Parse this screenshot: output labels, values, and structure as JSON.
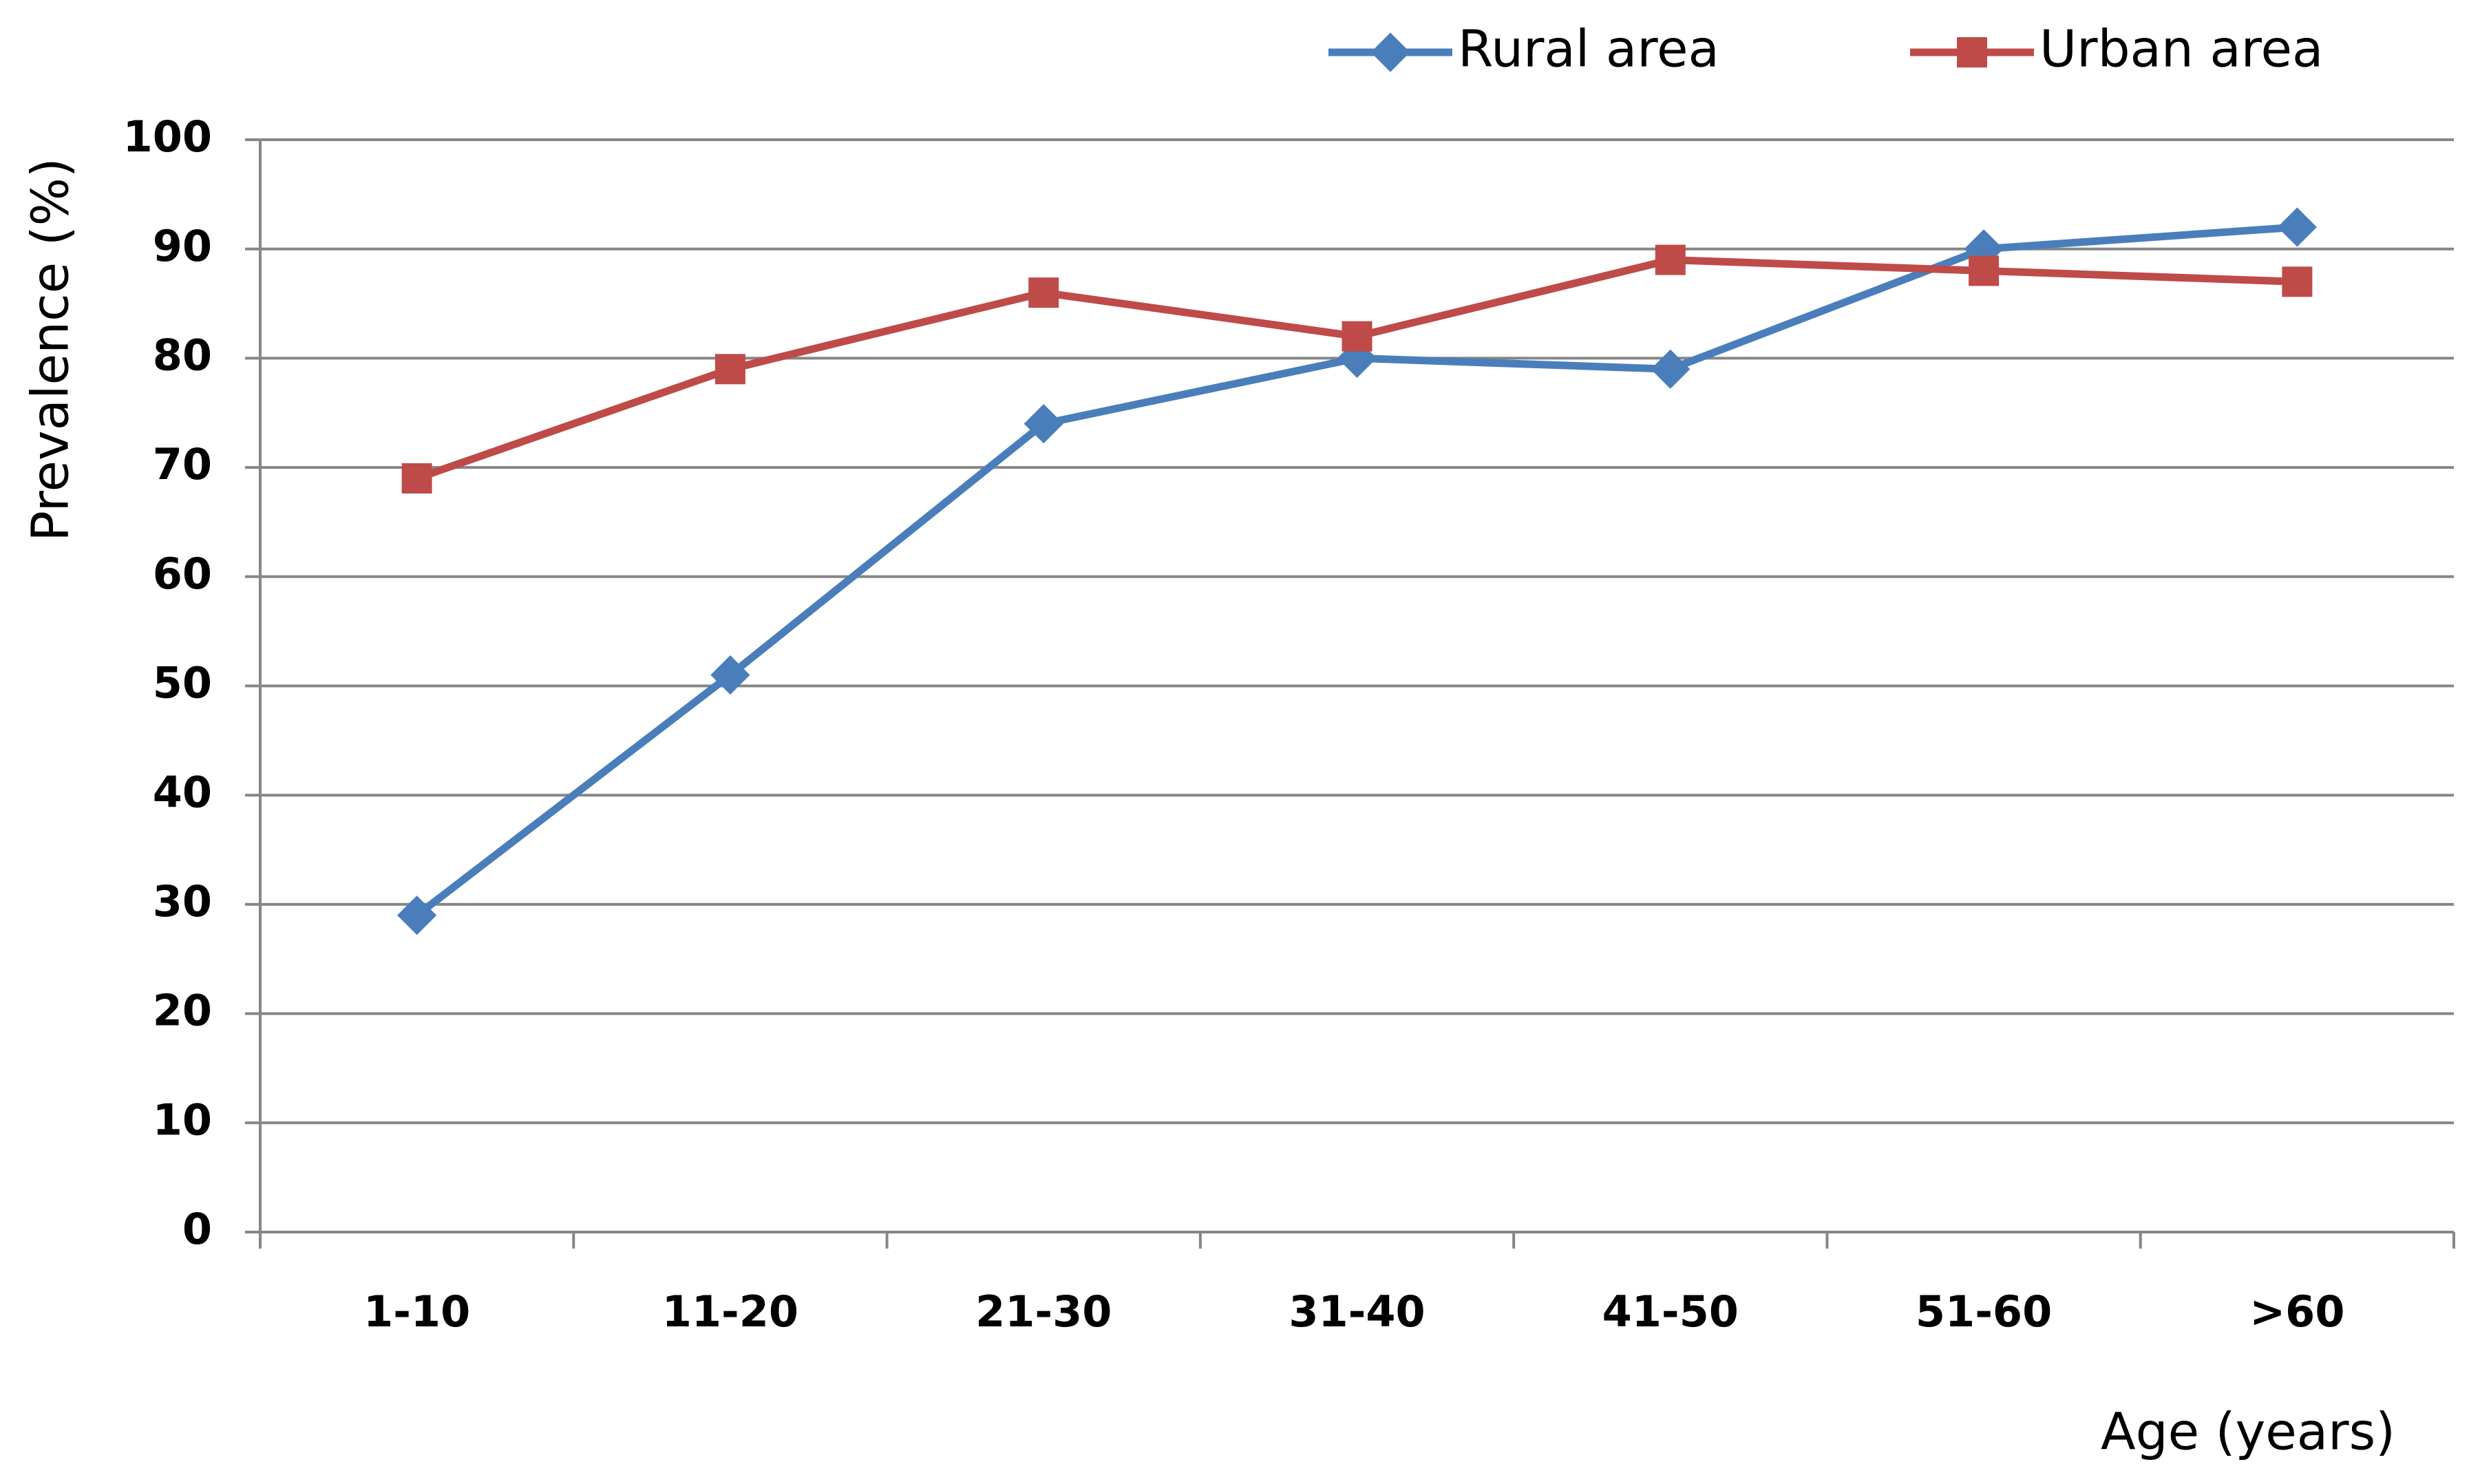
{
  "chart_data": {
    "type": "line",
    "x_label": "Age (years)",
    "y_label": "Prevalence (%)",
    "categories": [
      "1-10",
      "11-20",
      "21-30",
      "31-40",
      "41-50",
      "51-60",
      ">60"
    ],
    "series": [
      {
        "name": "Rural area",
        "color": "#4a7ebb",
        "marker": "diamond",
        "values": [
          29,
          51,
          74,
          80,
          79,
          90,
          92
        ]
      },
      {
        "name": "Urban area",
        "color": "#be4b48",
        "marker": "square",
        "values": [
          69,
          79,
          86,
          82,
          89,
          88,
          87
        ]
      }
    ],
    "ylim": [
      0,
      100
    ],
    "yticks": [
      0,
      10,
      20,
      30,
      40,
      50,
      60,
      70,
      80,
      90,
      100
    ],
    "grid": true,
    "legend": "top"
  }
}
